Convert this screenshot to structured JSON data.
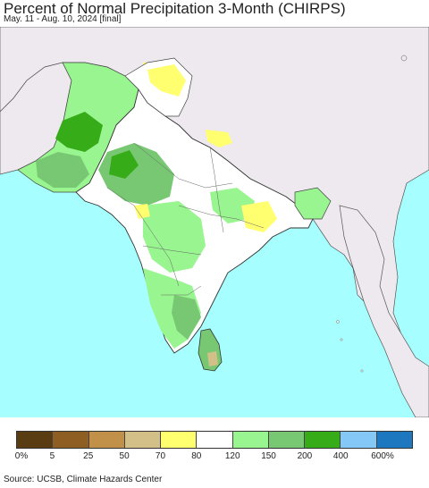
{
  "header": {
    "title": "Percent of Normal Precipitation 3-Month (CHIRPS)",
    "subtitle": "May. 11 - Aug. 10, 2024 [final]"
  },
  "legend": {
    "colors": [
      "#5a3c12",
      "#8f5e23",
      "#c1914a",
      "#d3c089",
      "#ffff70",
      "#ffffff",
      "#98f58f",
      "#78c873",
      "#36ad18",
      "#84c8f8",
      "#1e78c0"
    ],
    "labels": [
      "0%",
      "5",
      "25",
      "50",
      "70",
      "80",
      "120",
      "150",
      "200",
      "400",
      "600%"
    ]
  },
  "footer": {
    "source": "Source: UCSB, Climate Hazards Center"
  },
  "map": {
    "colors": {
      "ocean": "#a6fffe",
      "land_outside": "#ede9ee",
      "land_normal": "#ffffff",
      "land_wet": "#98f58f",
      "land_wetter": "#78c873",
      "land_wettest": "#36ad18",
      "land_dry": "#ffff70",
      "land_drier": "#d3c089",
      "border": "#333333"
    }
  }
}
